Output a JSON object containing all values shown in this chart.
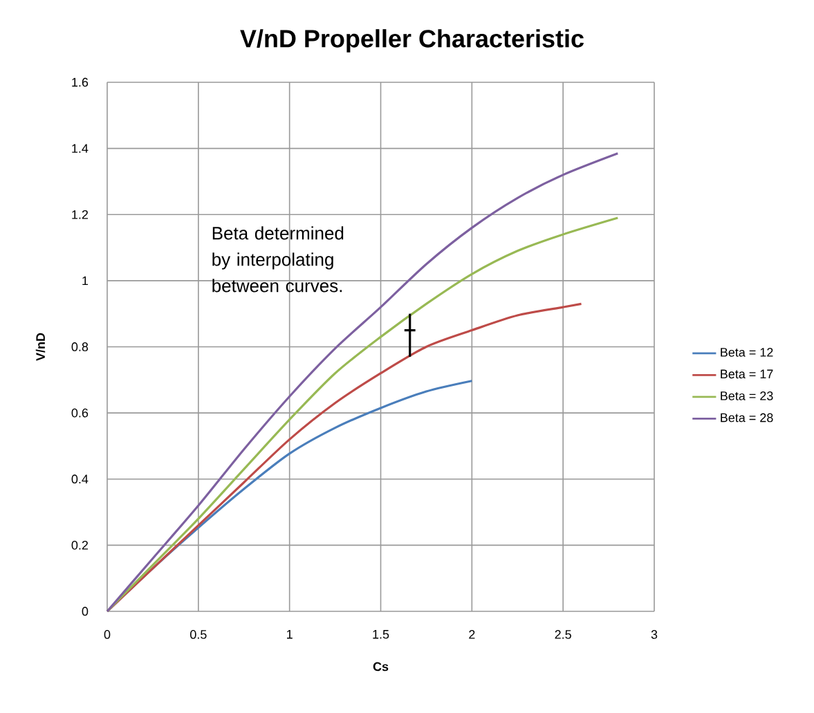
{
  "chart_data": {
    "type": "line",
    "title": "V/nD Propeller Characteristic",
    "xlabel": "Cs",
    "ylabel": "V/nD",
    "xlim": [
      0,
      3
    ],
    "ylim": [
      0,
      1.6
    ],
    "xticks": [
      0,
      0.5,
      1,
      1.5,
      2,
      2.5,
      3
    ],
    "yticks": [
      0,
      0.2,
      0.4,
      0.6,
      0.8,
      1,
      1.2,
      1.4,
      1.6
    ],
    "grid": true,
    "legend": "right",
    "annotations": [
      "Beta determined by interpolating between curves."
    ],
    "series": [
      {
        "name": "Beta = 12",
        "color": "#4a7ebb",
        "x": [
          0,
          0.25,
          0.5,
          0.75,
          1,
          1.25,
          1.5,
          1.75,
          2
        ],
        "values": [
          0,
          0.13,
          0.253,
          0.37,
          0.477,
          0.555,
          0.615,
          0.665,
          0.697
        ]
      },
      {
        "name": "Beta = 17",
        "color": "#be4b48",
        "x": [
          0,
          0.25,
          0.5,
          0.75,
          1,
          1.25,
          1.5,
          1.75,
          2,
          2.25,
          2.5,
          2.6
        ],
        "values": [
          0,
          0.13,
          0.26,
          0.39,
          0.52,
          0.63,
          0.72,
          0.8,
          0.85,
          0.895,
          0.92,
          0.93
        ]
      },
      {
        "name": "Beta = 23",
        "color": "#98b954",
        "x": [
          0,
          0.25,
          0.5,
          0.75,
          1,
          1.25,
          1.5,
          1.75,
          2,
          2.25,
          2.5,
          2.8
        ],
        "values": [
          0,
          0.14,
          0.28,
          0.43,
          0.58,
          0.72,
          0.83,
          0.93,
          1.02,
          1.09,
          1.14,
          1.19
        ]
      },
      {
        "name": "Beta = 28",
        "color": "#7d60a0",
        "x": [
          0,
          0.25,
          0.5,
          0.75,
          1,
          1.25,
          1.5,
          1.75,
          2,
          2.25,
          2.5,
          2.8
        ],
        "values": [
          0,
          0.16,
          0.32,
          0.49,
          0.65,
          0.795,
          0.92,
          1.05,
          1.16,
          1.25,
          1.32,
          1.385
        ]
      },
      {
        "color": "#000000",
        "x": [
          1.66,
          1.66
        ],
        "values": [
          0.77,
          0.9
        ]
      },
      {
        "color": "#000000",
        "x": [
          1.63,
          1.69
        ],
        "values": [
          0.85,
          0.85
        ]
      }
    ]
  }
}
